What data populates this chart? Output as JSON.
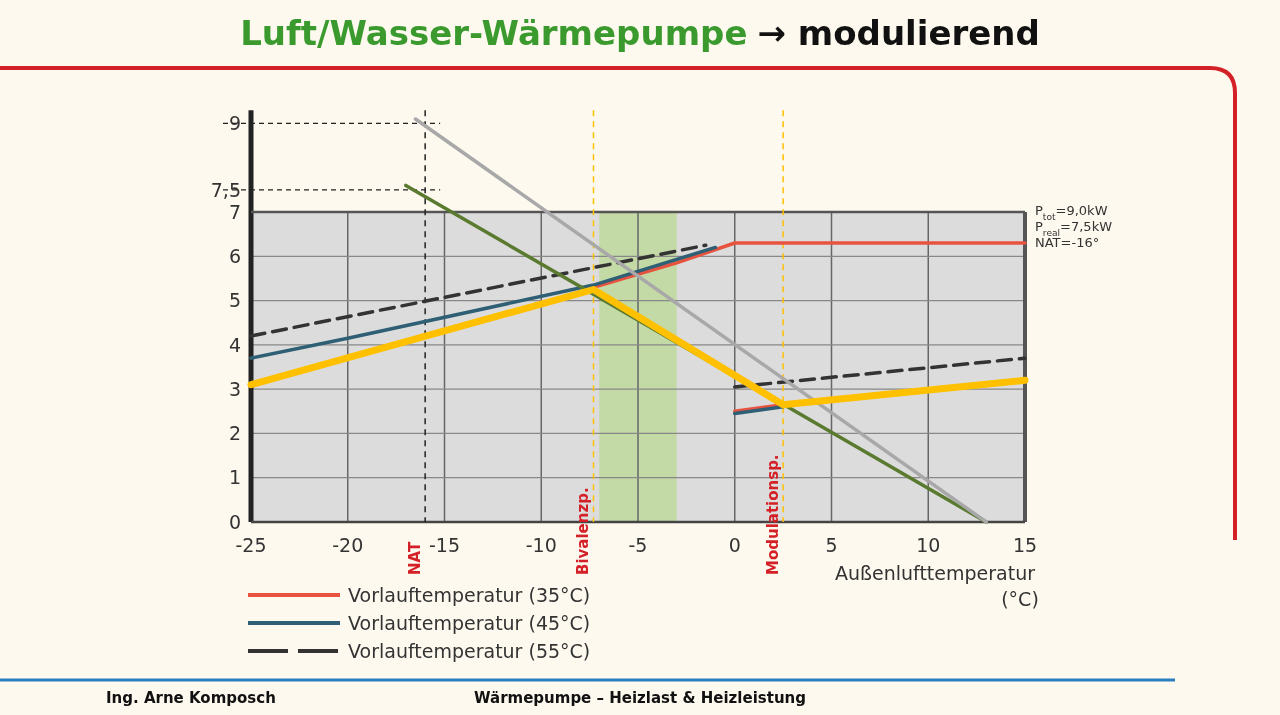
{
  "chart_data": {
    "type": "line",
    "title": "Luft/Wasser-Wärmepumpe",
    "subtitle": "→ modulierend",
    "xlabel": "Außenlufttemperatur\n(°C)",
    "xlim": [
      -25,
      15
    ],
    "xticks": [
      -25,
      -20,
      -15,
      -10,
      -5,
      0,
      5,
      10,
      15
    ],
    "ylim": [
      0,
      9.3
    ],
    "yticks": [
      0,
      1,
      2,
      3,
      4,
      5,
      6,
      7,
      {
        "value": 7.5,
        "label": "7,5"
      },
      9
    ],
    "grid": true,
    "legend": "bottom left",
    "marker": "none",
    "series": [
      {
        "name": "Vorlauftemperatur (35°C)",
        "color": "#e8533f",
        "x": [
          -7.3,
          -3,
          0,
          15
        ],
        "values": [
          5.3,
          5.85,
          6.3,
          6.3
        ]
      },
      {
        "color": "#e8533f",
        "x": [
          0,
          2.5
        ],
        "values": [
          2.5,
          2.65
        ]
      },
      {
        "name": "Vorlauftemperatur (45°C)",
        "color": "#2e5f74",
        "x": [
          -25,
          -20,
          -7.3,
          -1
        ],
        "values": [
          3.7,
          4.15,
          5.35,
          6.2
        ]
      },
      {
        "color": "#2e5f74",
        "x": [
          0,
          2.5
        ],
        "values": [
          2.45,
          2.6
        ]
      },
      {
        "name": "Vorlauftemperatur (55°C)",
        "color": "#333333",
        "line_style": "dashed",
        "x": [
          -25,
          -1.5
        ],
        "values": [
          4.2,
          6.25
        ]
      },
      {
        "color": "#333333",
        "line_style": "dashed",
        "x": [
          0,
          15
        ],
        "values": [
          3.05,
          3.7
        ]
      },
      {
        "color": "#5a7a30",
        "x": [
          -17,
          13
        ],
        "values": [
          7.6,
          0
        ]
      },
      {
        "color": "#a8a8a8",
        "x": [
          -16.5,
          13
        ],
        "values": [
          9.1,
          0
        ]
      },
      {
        "color": "#ffc000",
        "x": [
          -25,
          -7.3,
          2.5,
          15
        ],
        "values": [
          3.1,
          5.25,
          2.65,
          3.2
        ]
      }
    ],
    "ref_lines": [
      {
        "axis": "y",
        "value": 7,
        "color": "#555555",
        "line_style": "solid"
      },
      {
        "axis": "y",
        "value": 9,
        "color": "#222222",
        "line_style": "dashed"
      },
      {
        "axis": "y",
        "value": 7.5,
        "color": "#222222",
        "line_style": "dashed"
      },
      {
        "axis": "x",
        "value": -16,
        "label": "NAT",
        "color": "#222222",
        "line_style": "dashed"
      },
      {
        "axis": "x",
        "value": -7.3,
        "label": "Bivalenzp.",
        "color": "#ffc000",
        "line_style": "dashed"
      },
      {
        "axis": "x",
        "value": 2.5,
        "label": "Modulationsp.",
        "color": "#ffc000",
        "line_style": "dashed"
      }
    ],
    "bands": [
      {
        "axis": "y",
        "from": 0,
        "to": 7,
        "color": "#dcdcdc"
      },
      {
        "axis": "x",
        "from": -7,
        "to": -3,
        "color": "#b8d98f"
      }
    ],
    "annotations": [
      "P$_{tot}$=9,0kW",
      "P$_{real}$=7,5kW",
      "NAT=-16°",
      "Ing. Arne Komposch",
      "Wärmepumpe – Heizlast & Heizleistung"
    ]
  }
}
